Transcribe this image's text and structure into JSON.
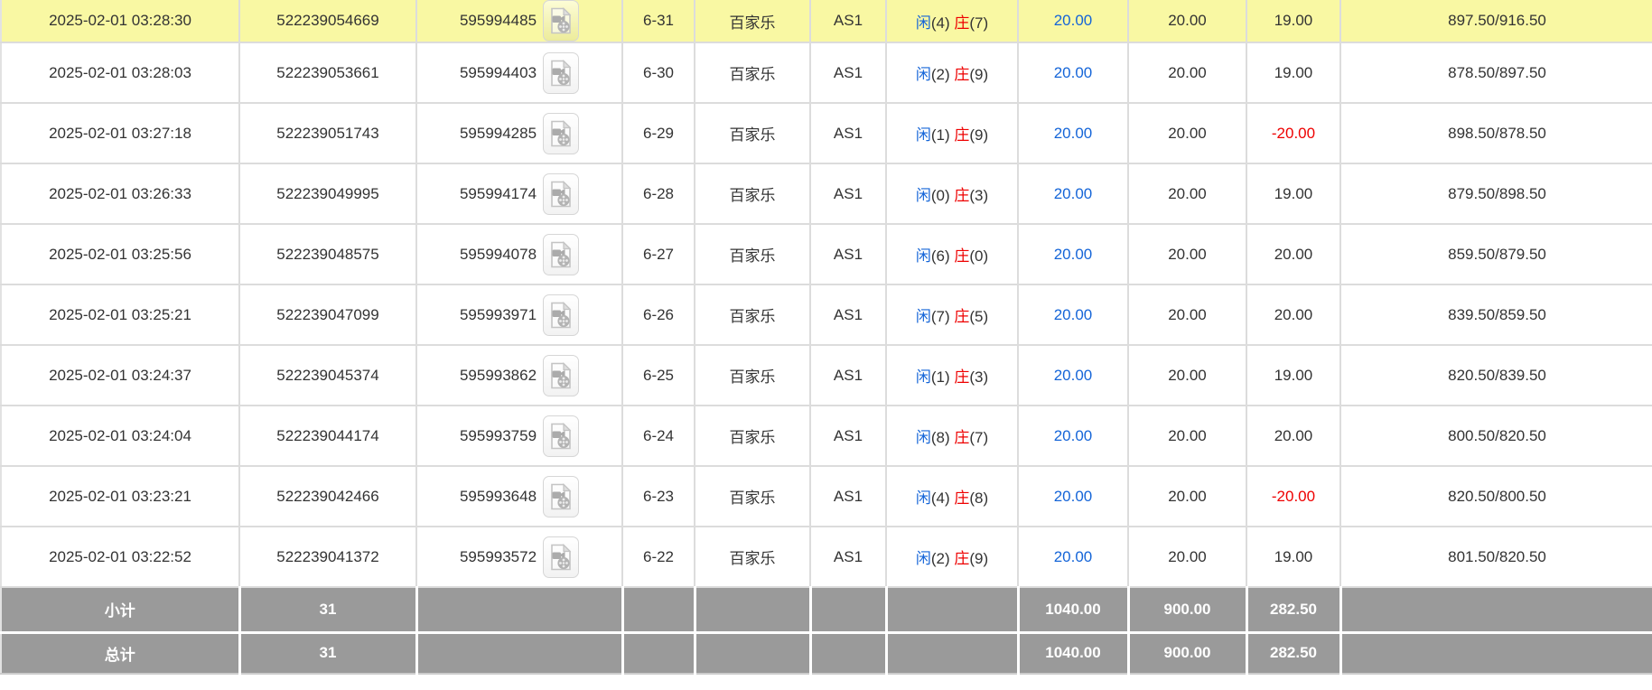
{
  "labels": {
    "player": "闲",
    "banker": "庄",
    "video_button_title": "视频"
  },
  "colors": {
    "highlight_row": "#f9f8a3",
    "footer_gray": "#9a9a9a",
    "grid_border": "#dcdcdc",
    "link_blue": "#1565d8",
    "player_blue": "#1565d8",
    "banker_red": "#ee0000",
    "negative_red": "#ee0000",
    "text": "#333333"
  },
  "table": {
    "rows": [
      {
        "highlighted": true,
        "time": "2025-02-01 03:28:30",
        "order_no": "522239054669",
        "game_no": "595994485",
        "round": "6-31",
        "game_type": "百家乐",
        "table": "AS1",
        "player_points": "4",
        "banker_points": "7",
        "bet_amount": "20.00",
        "valid_amount": "20.00",
        "win_loss": "19.00",
        "balance": "897.50/916.50"
      },
      {
        "highlighted": false,
        "time": "2025-02-01 03:28:03",
        "order_no": "522239053661",
        "game_no": "595994403",
        "round": "6-30",
        "game_type": "百家乐",
        "table": "AS1",
        "player_points": "2",
        "banker_points": "9",
        "bet_amount": "20.00",
        "valid_amount": "20.00",
        "win_loss": "19.00",
        "balance": "878.50/897.50"
      },
      {
        "highlighted": false,
        "time": "2025-02-01 03:27:18",
        "order_no": "522239051743",
        "game_no": "595994285",
        "round": "6-29",
        "game_type": "百家乐",
        "table": "AS1",
        "player_points": "1",
        "banker_points": "9",
        "bet_amount": "20.00",
        "valid_amount": "20.00",
        "win_loss": "-20.00",
        "balance": "898.50/878.50"
      },
      {
        "highlighted": false,
        "time": "2025-02-01 03:26:33",
        "order_no": "522239049995",
        "game_no": "595994174",
        "round": "6-28",
        "game_type": "百家乐",
        "table": "AS1",
        "player_points": "0",
        "banker_points": "3",
        "bet_amount": "20.00",
        "valid_amount": "20.00",
        "win_loss": "19.00",
        "balance": "879.50/898.50"
      },
      {
        "highlighted": false,
        "time": "2025-02-01 03:25:56",
        "order_no": "522239048575",
        "game_no": "595994078",
        "round": "6-27",
        "game_type": "百家乐",
        "table": "AS1",
        "player_points": "6",
        "banker_points": "0",
        "bet_amount": "20.00",
        "valid_amount": "20.00",
        "win_loss": "20.00",
        "balance": "859.50/879.50"
      },
      {
        "highlighted": false,
        "time": "2025-02-01 03:25:21",
        "order_no": "522239047099",
        "game_no": "595993971",
        "round": "6-26",
        "game_type": "百家乐",
        "table": "AS1",
        "player_points": "7",
        "banker_points": "5",
        "bet_amount": "20.00",
        "valid_amount": "20.00",
        "win_loss": "20.00",
        "balance": "839.50/859.50"
      },
      {
        "highlighted": false,
        "time": "2025-02-01 03:24:37",
        "order_no": "522239045374",
        "game_no": "595993862",
        "round": "6-25",
        "game_type": "百家乐",
        "table": "AS1",
        "player_points": "1",
        "banker_points": "3",
        "bet_amount": "20.00",
        "valid_amount": "20.00",
        "win_loss": "19.00",
        "balance": "820.50/839.50"
      },
      {
        "highlighted": false,
        "time": "2025-02-01 03:24:04",
        "order_no": "522239044174",
        "game_no": "595993759",
        "round": "6-24",
        "game_type": "百家乐",
        "table": "AS1",
        "player_points": "8",
        "banker_points": "7",
        "bet_amount": "20.00",
        "valid_amount": "20.00",
        "win_loss": "20.00",
        "balance": "800.50/820.50"
      },
      {
        "highlighted": false,
        "time": "2025-02-01 03:23:21",
        "order_no": "522239042466",
        "game_no": "595993648",
        "round": "6-23",
        "game_type": "百家乐",
        "table": "AS1",
        "player_points": "4",
        "banker_points": "8",
        "bet_amount": "20.00",
        "valid_amount": "20.00",
        "win_loss": "-20.00",
        "balance": "820.50/800.50"
      },
      {
        "highlighted": false,
        "time": "2025-02-01 03:22:52",
        "order_no": "522239041372",
        "game_no": "595993572",
        "round": "6-22",
        "game_type": "百家乐",
        "table": "AS1",
        "player_points": "2",
        "banker_points": "9",
        "bet_amount": "20.00",
        "valid_amount": "20.00",
        "win_loss": "19.00",
        "balance": "801.50/820.50"
      }
    ],
    "footer": [
      {
        "label": "小计",
        "count": "31",
        "bet_total": "1040.00",
        "valid_total": "900.00",
        "win_loss_total": "282.50"
      },
      {
        "label": "总计",
        "count": "31",
        "bet_total": "1040.00",
        "valid_total": "900.00",
        "win_loss_total": "282.50"
      }
    ]
  }
}
